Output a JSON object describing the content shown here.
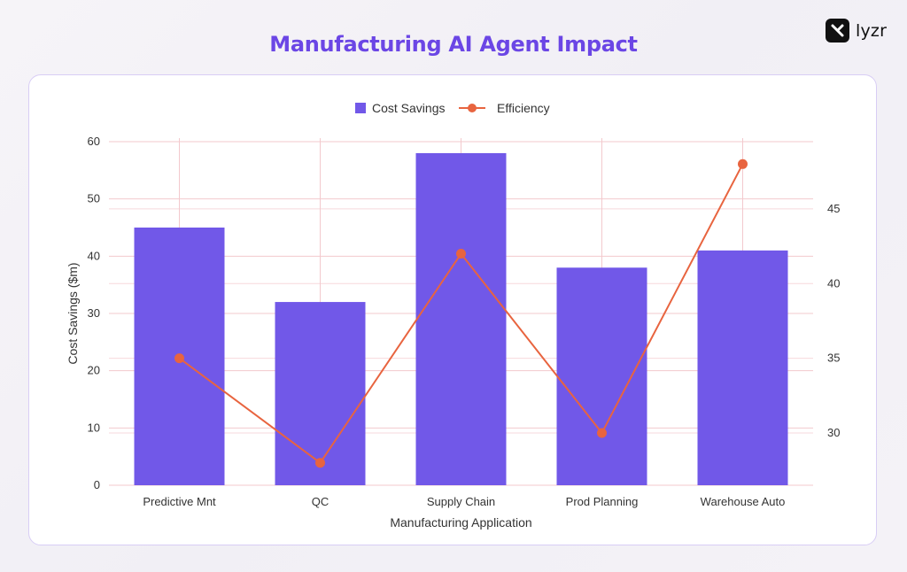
{
  "title": "Manufacturing AI Agent Impact",
  "brand": {
    "name": "lyzr",
    "icon": "lyzr-logo-icon"
  },
  "colors": {
    "title": "#6b46e5",
    "bar": "#7158e8",
    "line": "#e8643f",
    "grid": "#f3c9cd",
    "text": "#333333"
  },
  "chart_data": {
    "type": "bar",
    "categories": [
      "Predictive Mnt",
      "QC",
      "Supply Chain",
      "Prod Planning",
      "Warehouse Auto"
    ],
    "xlabel": "Manufacturing Application",
    "ylabel": "Cost Savings ($m)",
    "ylim": [
      0,
      60
    ],
    "yticks": [
      0,
      10,
      20,
      30,
      40,
      50,
      60
    ],
    "y2lim": [
      26.5,
      49.5
    ],
    "y2ticks": [
      30,
      35,
      40,
      45
    ],
    "grid": true,
    "legend_position": "top-center",
    "series": [
      {
        "name": "Cost Savings",
        "type": "bar",
        "axis": "left",
        "values": [
          45,
          32,
          58,
          38,
          41
        ]
      },
      {
        "name": "Efficiency",
        "type": "line",
        "axis": "right",
        "values": [
          35,
          28,
          42,
          30,
          48
        ]
      }
    ]
  }
}
